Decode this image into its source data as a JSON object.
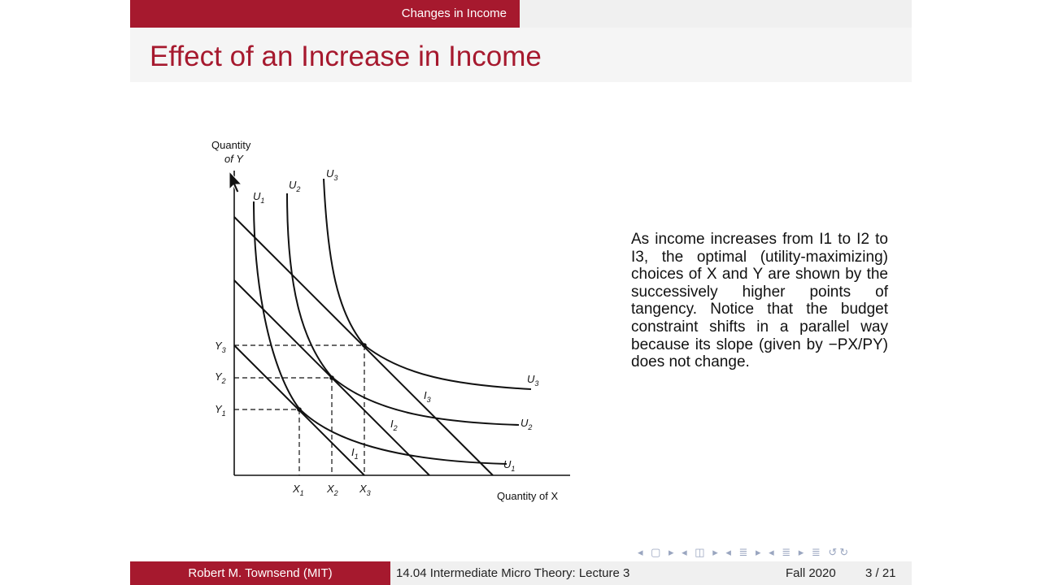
{
  "header": {
    "section": "Changes in Income",
    "title": "Effect of an Increase in Income"
  },
  "diagram": {
    "y_axis_label_line1": "Quantity",
    "y_axis_label_line2": "of Y",
    "x_axis_label": "Quantity of X",
    "curve_labels": {
      "u1": "U",
      "u2": "U",
      "u3": "U",
      "i1": "I",
      "i2": "I",
      "i3": "I"
    },
    "subscripts": {
      "one": "1",
      "two": "2",
      "three": "3"
    },
    "tick_labels": {
      "x": [
        "X",
        "X",
        "X"
      ],
      "y": [
        "Y",
        "Y",
        "Y"
      ]
    }
  },
  "description": {
    "text": "As income increases from I1 to I2 to I3, the optimal (utility-maximizing) choices of X and Y are shown by the successively higher points of tangency. Notice that the budget constraint shifts in a parallel way because its slope (given by −PX/PY) does not change."
  },
  "footer": {
    "author": "Robert M. Townsend  (MIT)",
    "course": "14.04 Intermediate Micro Theory: Lecture 3",
    "date": "Fall 2020",
    "page": "3 / 21"
  },
  "nav": {
    "symbols": "◂ ▢ ▸ ◂ ◫ ▸ ◂ ≣ ▸ ◂ ≣ ▸ ≣ ↺↻"
  }
}
